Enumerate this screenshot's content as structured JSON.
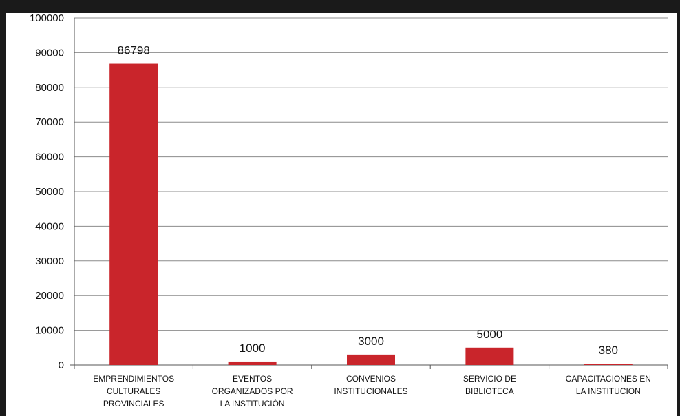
{
  "chart_data": {
    "type": "bar",
    "title": "",
    "xlabel": "",
    "ylabel": "",
    "categories": [
      [
        "EMPRENDIMIENTOS",
        "CULTURALES",
        "PROVINCIALES"
      ],
      [
        "EVENTOS",
        "ORGANIZADOS POR",
        "LA INSTITUCIÓN"
      ],
      [
        "CONVENIOS",
        "INSTITUCIONALES"
      ],
      [
        "SERVICIO DE",
        "BIBLIOTECA"
      ],
      [
        "CAPACITACIONES  EN",
        "LA INSTITUCION"
      ]
    ],
    "values": [
      86798,
      1000,
      3000,
      5000,
      380
    ],
    "data_labels": [
      "86798",
      "1000",
      "3000",
      "5000",
      "380"
    ],
    "ylim": [
      0,
      100000
    ],
    "yticks": [
      0,
      10000,
      20000,
      30000,
      40000,
      50000,
      60000,
      70000,
      80000,
      90000,
      100000
    ],
    "ytick_labels": [
      "0",
      "10000",
      "20000",
      "30000",
      "40000",
      "50000",
      "60000",
      "70000",
      "80000",
      "90000",
      "100000"
    ],
    "grid": true,
    "legend": "none",
    "colors": {
      "bar": "#c9252b",
      "grid": "#8c8c8c",
      "frame": "#1a1a1a"
    }
  }
}
